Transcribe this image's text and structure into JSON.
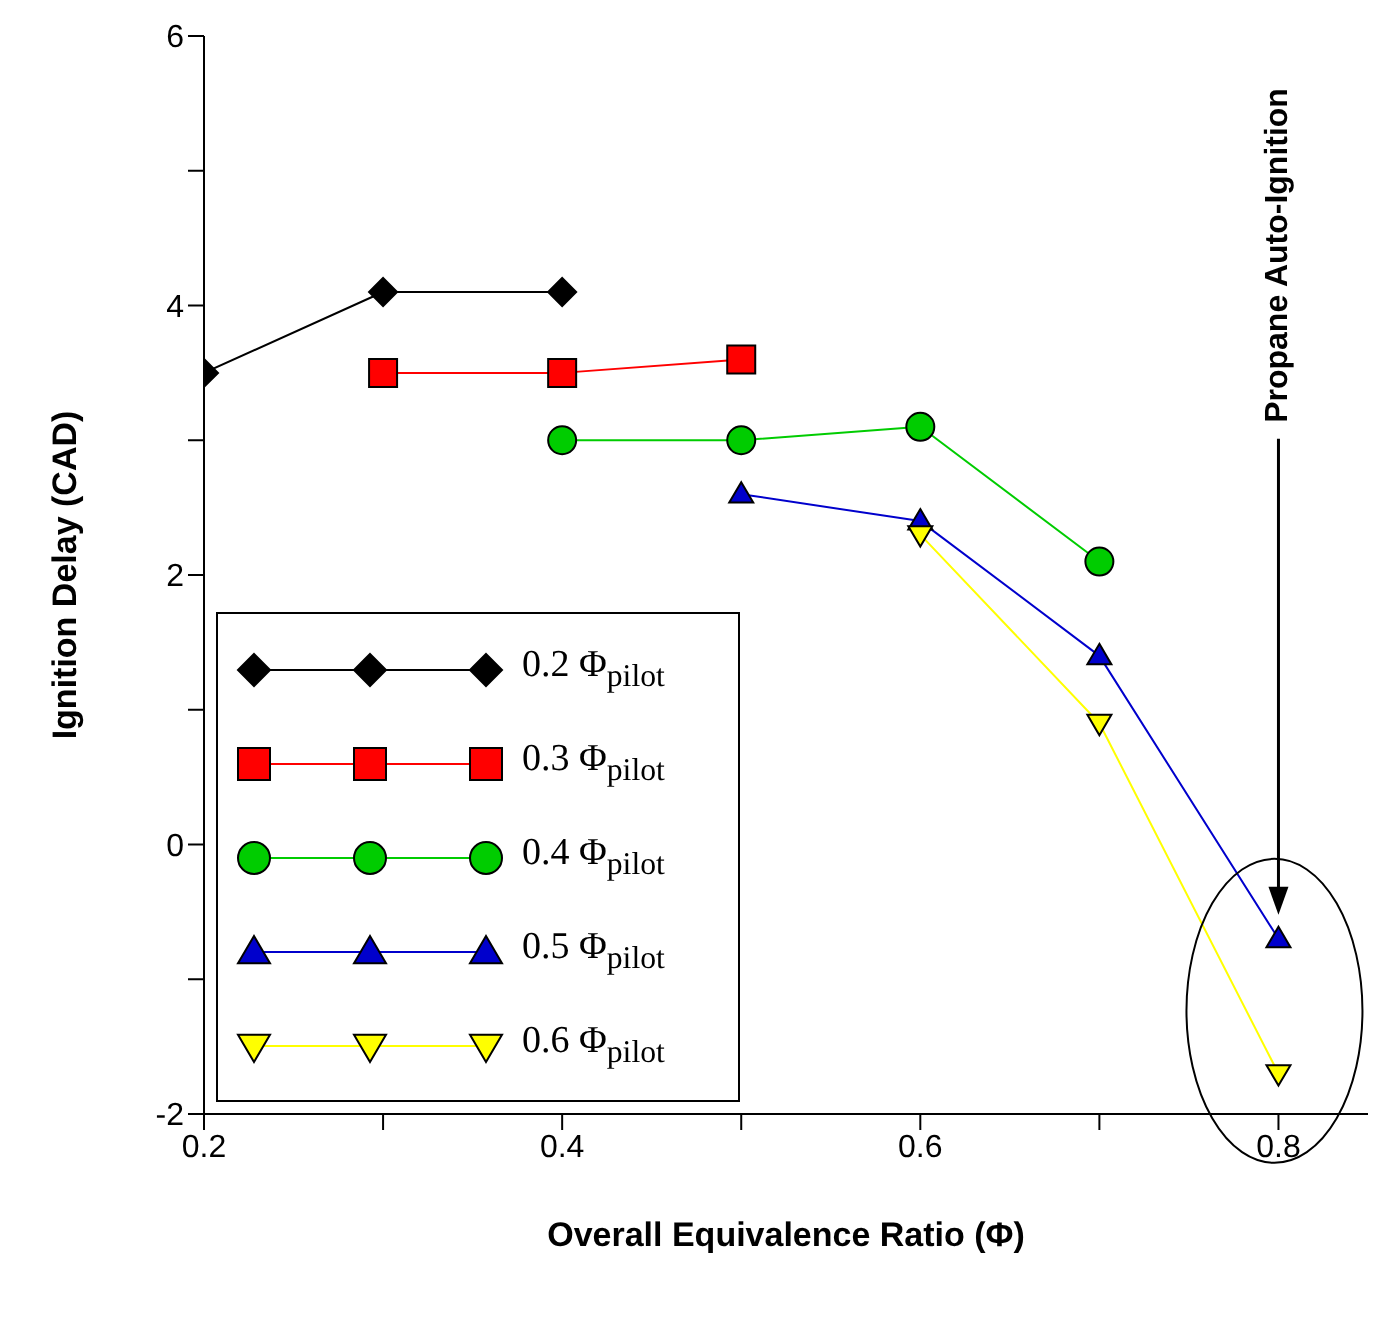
{
  "chart_data": {
    "type": "line",
    "xlabel": "Overall Equivalence Ratio (Φ)",
    "ylabel": "Ignition Delay (CAD)",
    "xlim": [
      0.2,
      0.85
    ],
    "xticks": [
      0.2,
      {
        "value": 0.3,
        "label": null
      },
      0.4,
      {
        "value": 0.5,
        "label": null
      },
      0.6,
      {
        "value": 0.7,
        "label": null
      },
      0.8
    ],
    "ylim": [
      -2,
      6
    ],
    "yticks": [
      -2,
      {
        "value": -1,
        "label": null
      },
      0,
      {
        "value": 1,
        "label": null
      },
      2,
      {
        "value": 3,
        "label": null
      },
      4,
      {
        "value": 5,
        "label": null
      },
      6
    ],
    "legend": "bottom left",
    "line_style": "solid",
    "annotations": [
      "Propane Auto-Ignition"
    ],
    "series": [
      {
        "name": "0.2 Φ$_{pilot}$",
        "color": "#000000",
        "marker": "diamond",
        "x": [
          0.2,
          0.3,
          0.4
        ],
        "values": [
          3.5,
          4.1,
          4.1
        ]
      },
      {
        "name": "0.3 Φ$_{pilot}$",
        "color": "#ff0000",
        "marker": "square",
        "x": [
          0.3,
          0.4,
          0.5
        ],
        "values": [
          3.5,
          3.5,
          3.6
        ]
      },
      {
        "name": "0.4 Φ$_{pilot}$",
        "color": "#00cc00",
        "marker": "circle",
        "x": [
          0.4,
          0.5,
          0.6,
          0.7
        ],
        "values": [
          3.0,
          3.0,
          3.1,
          2.1
        ]
      },
      {
        "name": "0.5 Φ$_{pilot}$",
        "color": "#0000cc",
        "marker": "triangle",
        "x": [
          0.5,
          0.6,
          0.7,
          0.8
        ],
        "values": [
          2.6,
          2.4,
          1.4,
          -0.7
        ]
      },
      {
        "name": "0.6 Φ$_{pilot}$",
        "color": "#ffff00",
        "marker": "triangle-down",
        "x": [
          0.6,
          0.7,
          0.8
        ],
        "values": [
          2.3,
          0.9,
          -1.7
        ]
      }
    ]
  }
}
